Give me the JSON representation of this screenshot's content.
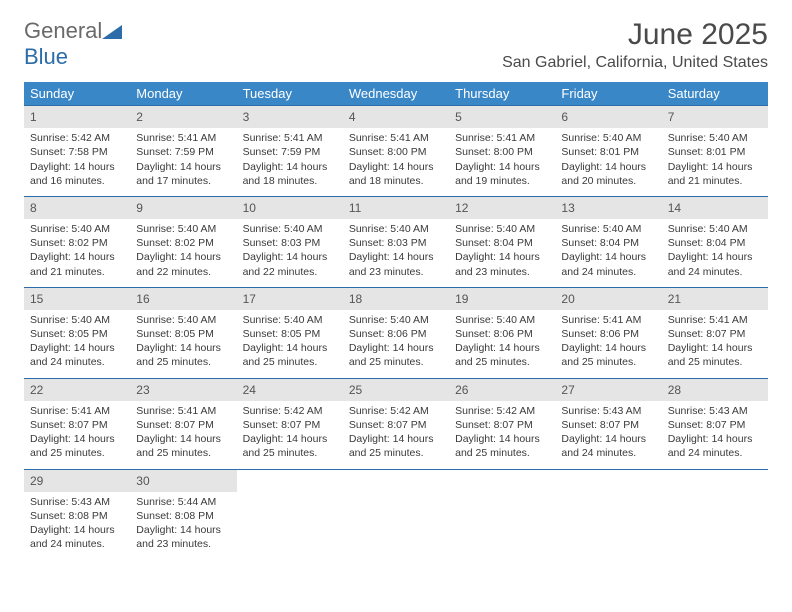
{
  "logo": {
    "word1": "General",
    "word2": "Blue"
  },
  "title": "June 2025",
  "location": "San Gabriel, California, United States",
  "colors": {
    "header_bg": "#3a87c8",
    "header_text": "#ffffff",
    "daynum_bg": "#e5e5e5",
    "border": "#2c6ca8",
    "logo_gray": "#6a6a6a",
    "logo_blue": "#2c6ca8"
  },
  "weekdays": [
    "Sunday",
    "Monday",
    "Tuesday",
    "Wednesday",
    "Thursday",
    "Friday",
    "Saturday"
  ],
  "days": [
    {
      "n": "1",
      "sunrise": "5:42 AM",
      "sunset": "7:58 PM",
      "dl": "14 hours and 16 minutes."
    },
    {
      "n": "2",
      "sunrise": "5:41 AM",
      "sunset": "7:59 PM",
      "dl": "14 hours and 17 minutes."
    },
    {
      "n": "3",
      "sunrise": "5:41 AM",
      "sunset": "7:59 PM",
      "dl": "14 hours and 18 minutes."
    },
    {
      "n": "4",
      "sunrise": "5:41 AM",
      "sunset": "8:00 PM",
      "dl": "14 hours and 18 minutes."
    },
    {
      "n": "5",
      "sunrise": "5:41 AM",
      "sunset": "8:00 PM",
      "dl": "14 hours and 19 minutes."
    },
    {
      "n": "6",
      "sunrise": "5:40 AM",
      "sunset": "8:01 PM",
      "dl": "14 hours and 20 minutes."
    },
    {
      "n": "7",
      "sunrise": "5:40 AM",
      "sunset": "8:01 PM",
      "dl": "14 hours and 21 minutes."
    },
    {
      "n": "8",
      "sunrise": "5:40 AM",
      "sunset": "8:02 PM",
      "dl": "14 hours and 21 minutes."
    },
    {
      "n": "9",
      "sunrise": "5:40 AM",
      "sunset": "8:02 PM",
      "dl": "14 hours and 22 minutes."
    },
    {
      "n": "10",
      "sunrise": "5:40 AM",
      "sunset": "8:03 PM",
      "dl": "14 hours and 22 minutes."
    },
    {
      "n": "11",
      "sunrise": "5:40 AM",
      "sunset": "8:03 PM",
      "dl": "14 hours and 23 minutes."
    },
    {
      "n": "12",
      "sunrise": "5:40 AM",
      "sunset": "8:04 PM",
      "dl": "14 hours and 23 minutes."
    },
    {
      "n": "13",
      "sunrise": "5:40 AM",
      "sunset": "8:04 PM",
      "dl": "14 hours and 24 minutes."
    },
    {
      "n": "14",
      "sunrise": "5:40 AM",
      "sunset": "8:04 PM",
      "dl": "14 hours and 24 minutes."
    },
    {
      "n": "15",
      "sunrise": "5:40 AM",
      "sunset": "8:05 PM",
      "dl": "14 hours and 24 minutes."
    },
    {
      "n": "16",
      "sunrise": "5:40 AM",
      "sunset": "8:05 PM",
      "dl": "14 hours and 25 minutes."
    },
    {
      "n": "17",
      "sunrise": "5:40 AM",
      "sunset": "8:05 PM",
      "dl": "14 hours and 25 minutes."
    },
    {
      "n": "18",
      "sunrise": "5:40 AM",
      "sunset": "8:06 PM",
      "dl": "14 hours and 25 minutes."
    },
    {
      "n": "19",
      "sunrise": "5:40 AM",
      "sunset": "8:06 PM",
      "dl": "14 hours and 25 minutes."
    },
    {
      "n": "20",
      "sunrise": "5:41 AM",
      "sunset": "8:06 PM",
      "dl": "14 hours and 25 minutes."
    },
    {
      "n": "21",
      "sunrise": "5:41 AM",
      "sunset": "8:07 PM",
      "dl": "14 hours and 25 minutes."
    },
    {
      "n": "22",
      "sunrise": "5:41 AM",
      "sunset": "8:07 PM",
      "dl": "14 hours and 25 minutes."
    },
    {
      "n": "23",
      "sunrise": "5:41 AM",
      "sunset": "8:07 PM",
      "dl": "14 hours and 25 minutes."
    },
    {
      "n": "24",
      "sunrise": "5:42 AM",
      "sunset": "8:07 PM",
      "dl": "14 hours and 25 minutes."
    },
    {
      "n": "25",
      "sunrise": "5:42 AM",
      "sunset": "8:07 PM",
      "dl": "14 hours and 25 minutes."
    },
    {
      "n": "26",
      "sunrise": "5:42 AM",
      "sunset": "8:07 PM",
      "dl": "14 hours and 25 minutes."
    },
    {
      "n": "27",
      "sunrise": "5:43 AM",
      "sunset": "8:07 PM",
      "dl": "14 hours and 24 minutes."
    },
    {
      "n": "28",
      "sunrise": "5:43 AM",
      "sunset": "8:07 PM",
      "dl": "14 hours and 24 minutes."
    },
    {
      "n": "29",
      "sunrise": "5:43 AM",
      "sunset": "8:08 PM",
      "dl": "14 hours and 24 minutes."
    },
    {
      "n": "30",
      "sunrise": "5:44 AM",
      "sunset": "8:08 PM",
      "dl": "14 hours and 23 minutes."
    }
  ],
  "labels": {
    "sunrise": "Sunrise: ",
    "sunset": "Sunset: ",
    "daylight": "Daylight: "
  },
  "first_weekday_index": 0,
  "total_cells": 35
}
